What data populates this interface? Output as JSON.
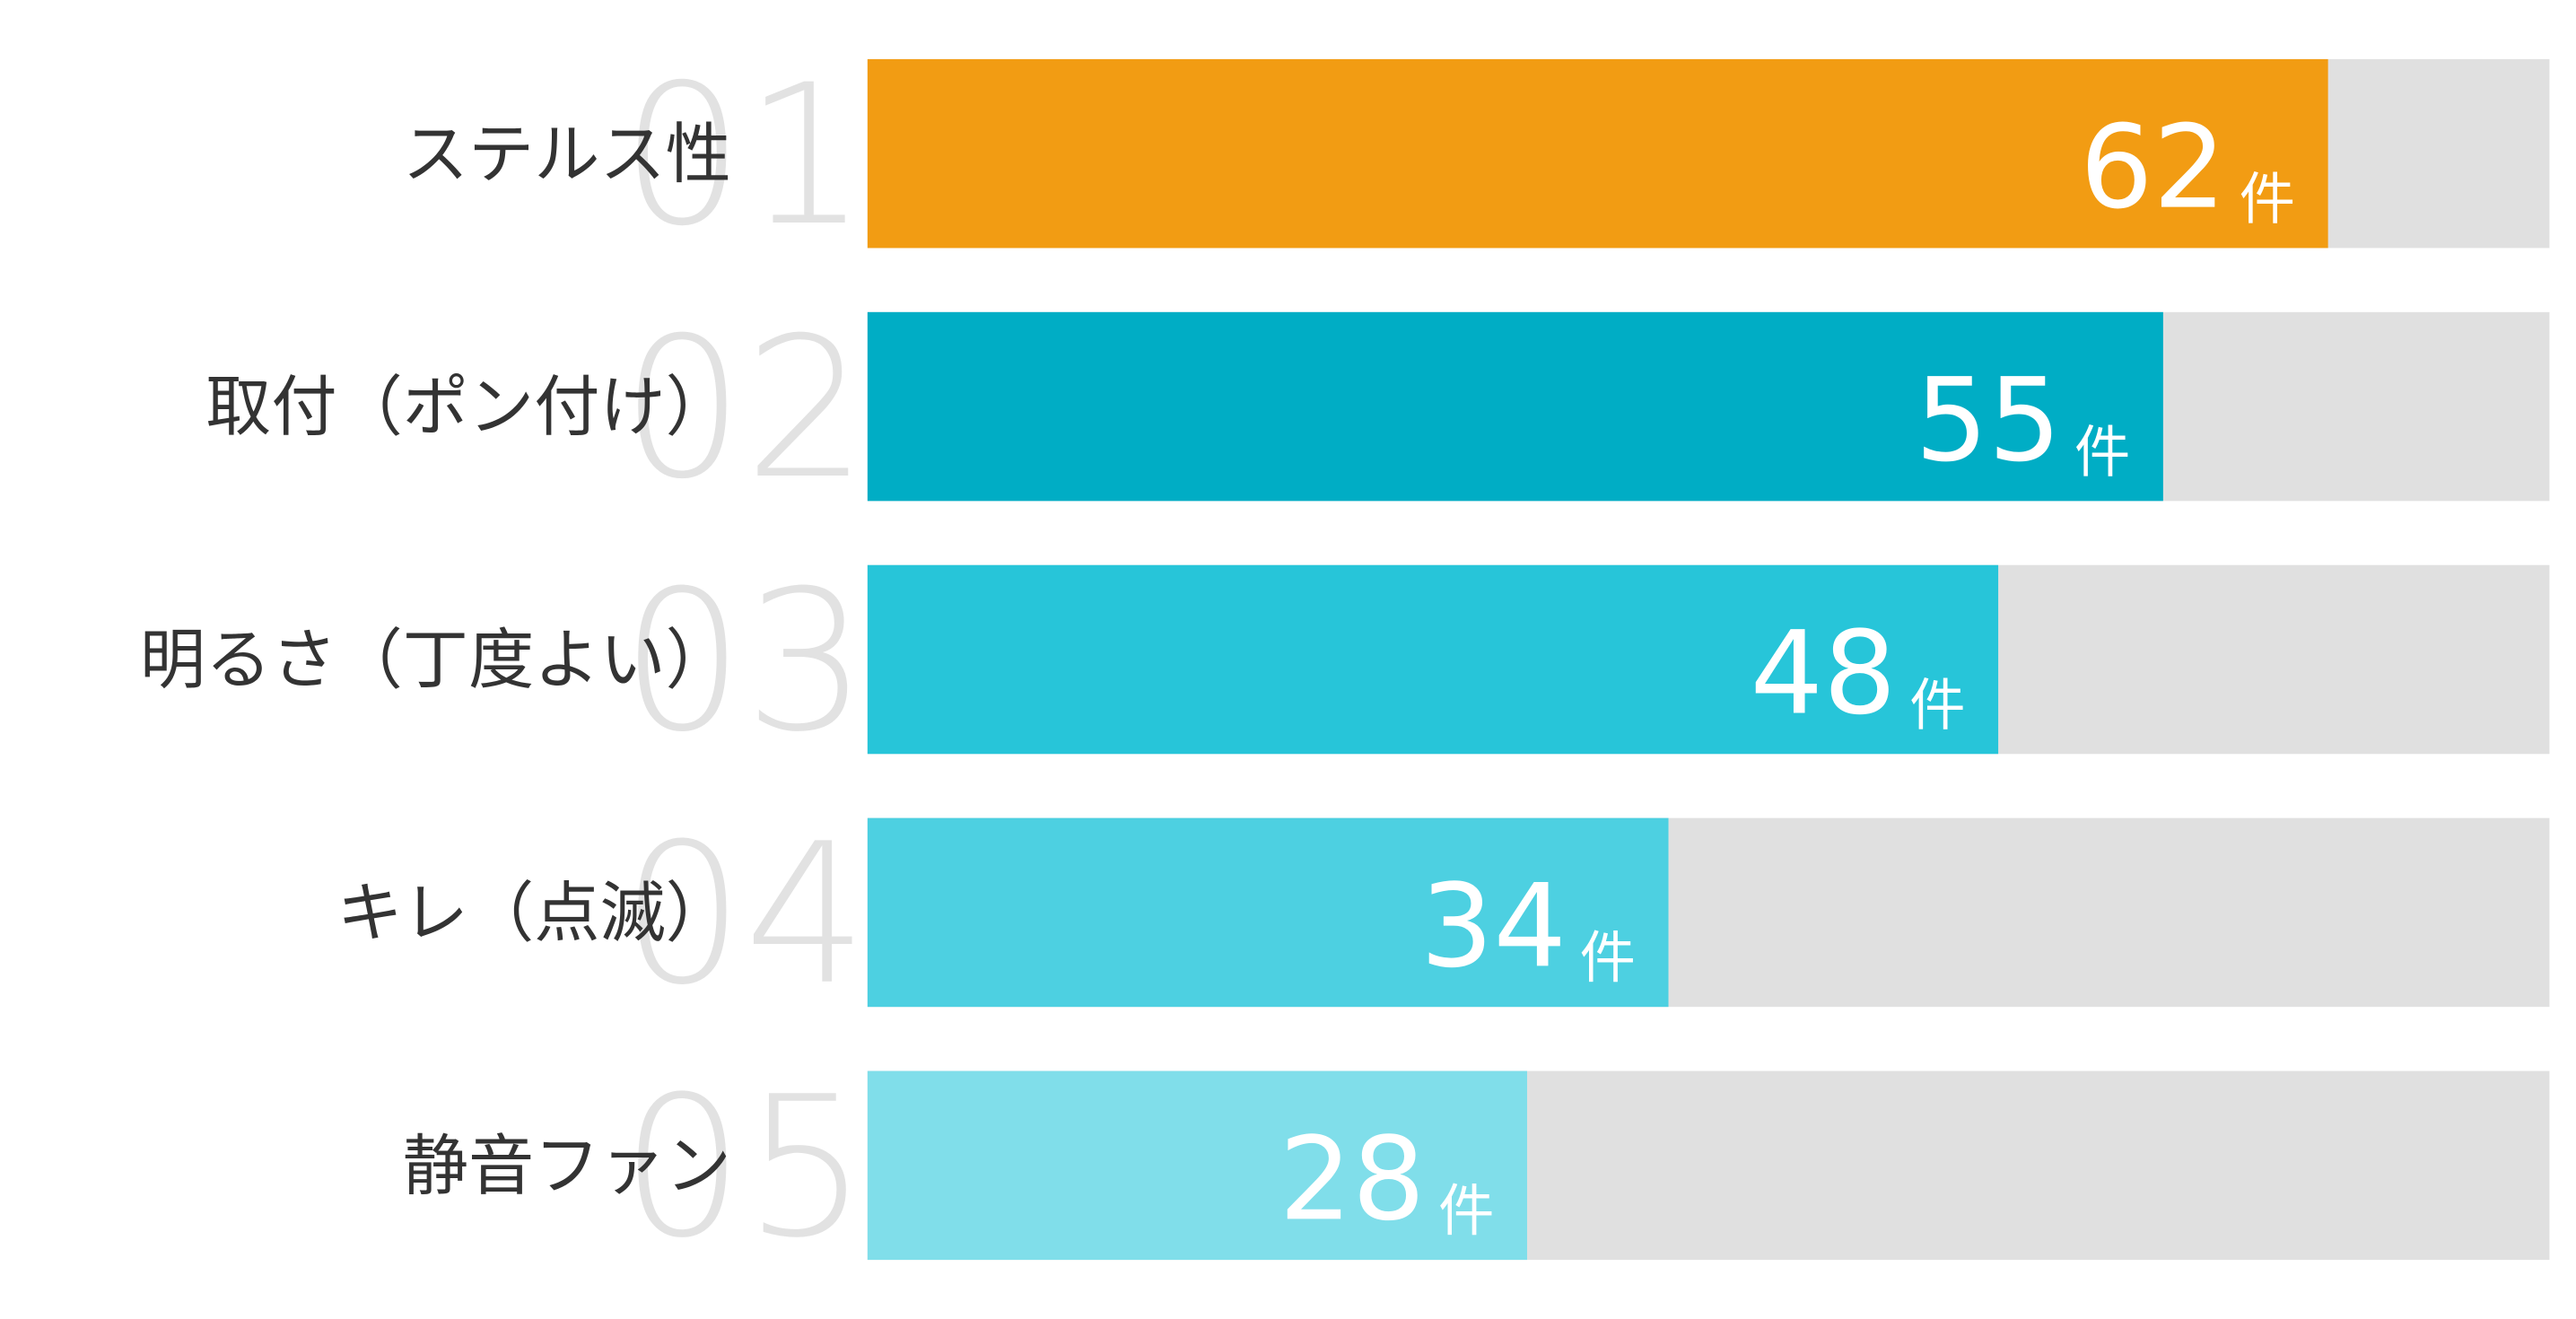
{
  "chart_data": {
    "type": "bar",
    "orientation": "horizontal",
    "categories": [
      "ステルス性",
      "取付（ポン付け）",
      "明るさ（丁度よい）",
      "キレ（点滅）",
      "静音ファン"
    ],
    "ranks": [
      "01",
      "02",
      "03",
      "04",
      "05"
    ],
    "values": [
      62,
      55,
      48,
      34,
      28
    ],
    "unit": "件",
    "colors": [
      "#f29c13",
      "#00adc5",
      "#27c5d9",
      "#4dd0e1",
      "#80deea"
    ],
    "track_color": "#e0e0e0",
    "xlim": [
      0,
      71.4
    ]
  }
}
